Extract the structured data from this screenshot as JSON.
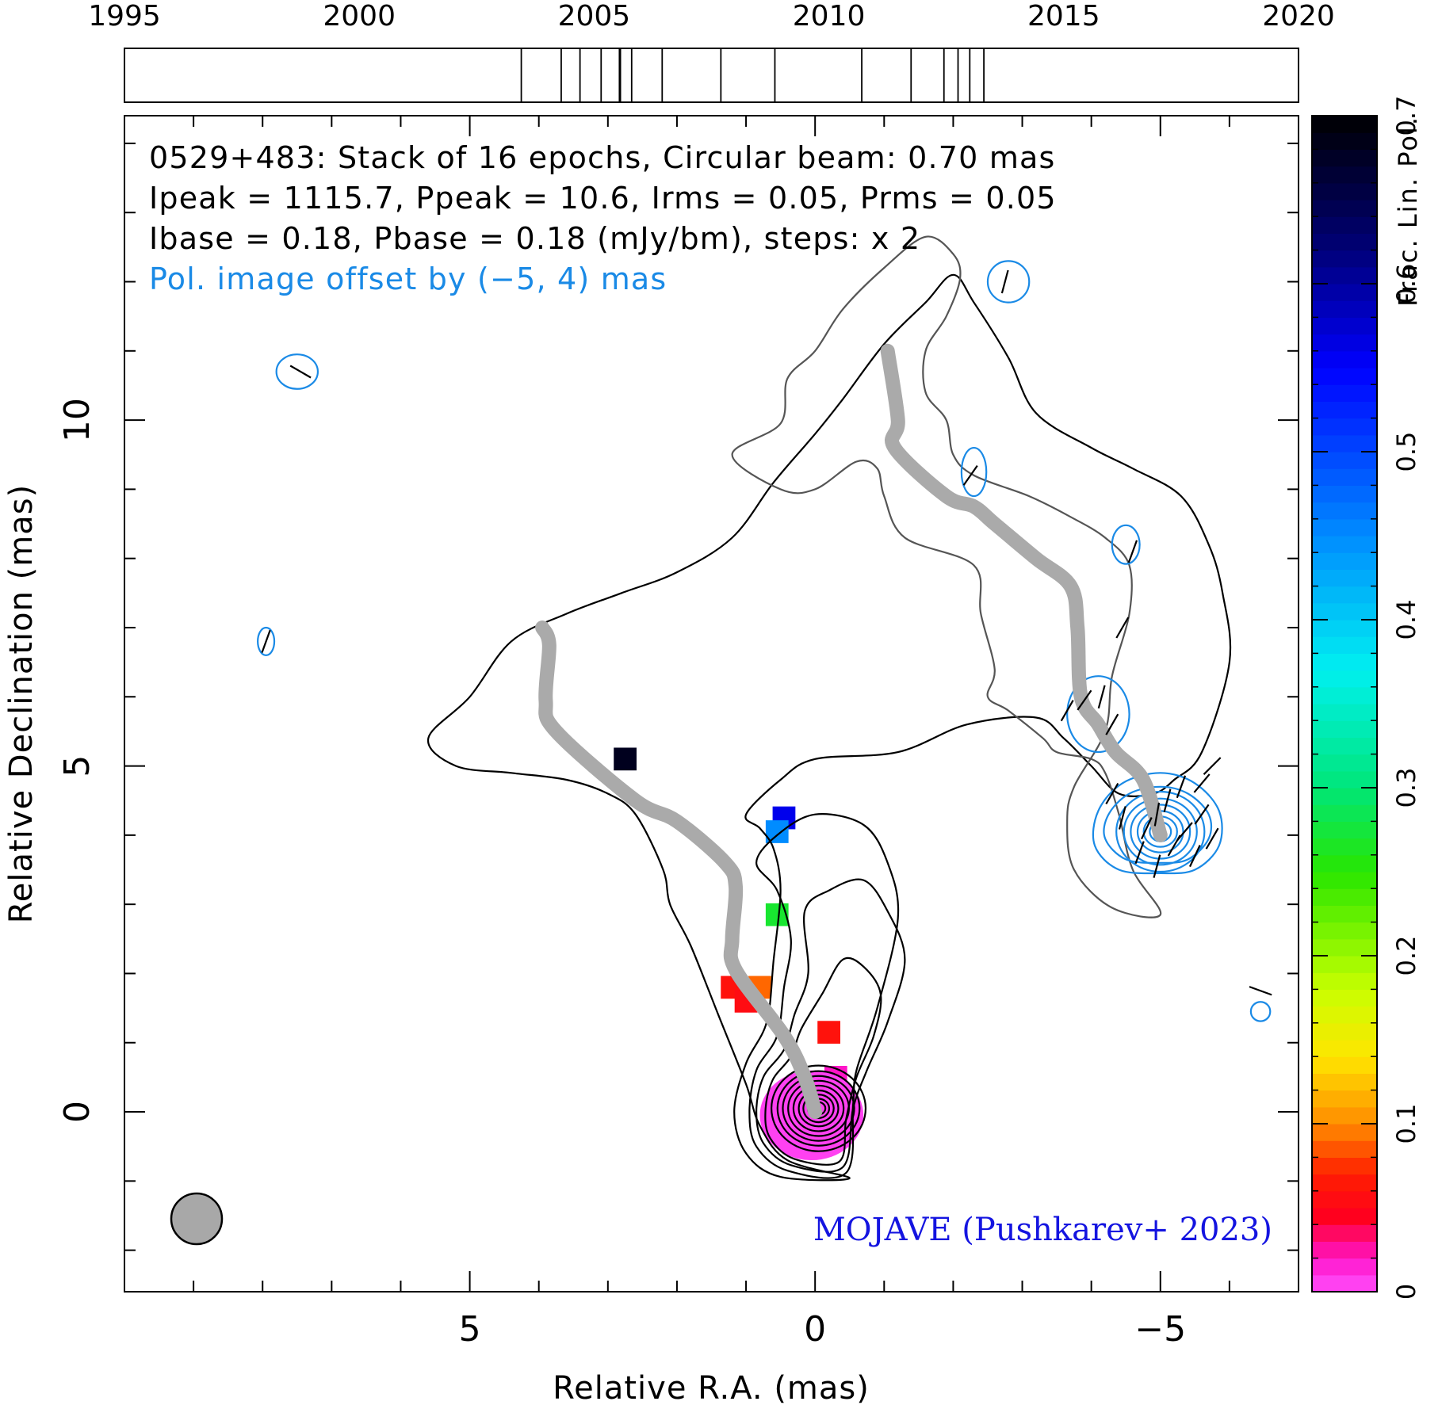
{
  "chart_data": {
    "type": "contour",
    "title_lines": [
      "0529+483: Stack of 16 epochs, Circular beam: 0.70 mas",
      "Ipeak = 1115.7, Ppeak = 10.6, Irms = 0.05, Prms = 0.05",
      "Ibase = 0.18, Pbase = 0.18 (mJy/bm), steps: x 2"
    ],
    "offset_note": "Pol. image offset by (−5, 4) mas",
    "credit": "MOJAVE (Pushkarev+ 2023)",
    "xlabel": "Relative R.A. (mas)",
    "ylabel": "Relative Declination (mas)",
    "colorbar_label": "Frac. Lin. Pol.",
    "xlim": [
      10,
      -7
    ],
    "ylim": [
      -2.6,
      14.4
    ],
    "x_ticks": [
      5,
      0,
      -5
    ],
    "x_tick_labels": [
      "5",
      "0",
      "−5"
    ],
    "y_ticks": [
      0,
      5,
      10
    ],
    "y_tick_labels": [
      "0",
      "5",
      "10"
    ],
    "colorbar_range": [
      0,
      0.7
    ],
    "colorbar_ticks": [
      0,
      0.1,
      0.2,
      0.3,
      0.4,
      0.5,
      0.6,
      0.7
    ],
    "colorbar_tick_labels": [
      "0",
      "0.1",
      "0.2",
      "0.3",
      "0.4",
      "0.5",
      "0.6",
      "0.7"
    ],
    "timeline": {
      "range": [
        1995,
        2020
      ],
      "tick_labels": [
        "1995",
        "2000",
        "2005",
        "2010",
        "2015",
        "2020"
      ],
      "epochs": [
        2003.45,
        2004.3,
        2004.7,
        2005.15,
        2005.55,
        2005.55,
        2005.8,
        2006.45,
        2007.7,
        2008.85,
        2010.7,
        2011.75,
        2012.45,
        2012.75,
        2013.0,
        2013.3
      ]
    },
    "beam_diameter_mas": 0.7,
    "total_intensity_contours": [
      [
        [
          -0.5,
          -0.96
        ],
        [
          0.5,
          -0.94
        ],
        [
          1.0,
          -0.6
        ],
        [
          1.17,
          0.0
        ],
        [
          1.0,
          0.7
        ],
        [
          0.7,
          1.3
        ],
        [
          0.6,
          2.2
        ],
        [
          0.5,
          3.2
        ],
        [
          0.6,
          3.8
        ],
        [
          0.8,
          4.1
        ],
        [
          1.0,
          4.3
        ],
        [
          0.5,
          4.8
        ],
        [
          0.0,
          5.1
        ],
        [
          -1.2,
          5.2
        ],
        [
          -2.2,
          5.6
        ],
        [
          -3.2,
          5.7
        ],
        [
          -3.6,
          5.4
        ],
        [
          -4.0,
          5.0
        ],
        [
          -4.4,
          4.6
        ],
        [
          -4.9,
          4.6
        ],
        [
          -5.2,
          4.8
        ],
        [
          -5.6,
          5.2
        ],
        [
          -6.0,
          6.5
        ],
        [
          -5.9,
          7.5
        ],
        [
          -5.7,
          8.2
        ],
        [
          -5.3,
          8.9
        ],
        [
          -4.6,
          9.3
        ],
        [
          -4.0,
          9.6
        ],
        [
          -3.2,
          10.1
        ],
        [
          -2.8,
          10.9
        ],
        [
          -2.3,
          11.7
        ],
        [
          -2.0,
          12.1
        ],
        [
          -1.6,
          11.7
        ],
        [
          -1.0,
          11.1
        ],
        [
          -0.4,
          10.3
        ],
        [
          0.0,
          9.8
        ],
        [
          0.6,
          9.1
        ],
        [
          1.2,
          8.3
        ],
        [
          2.0,
          7.8
        ],
        [
          2.8,
          7.5
        ],
        [
          3.6,
          7.2
        ],
        [
          4.4,
          6.8
        ],
        [
          5.0,
          6.0
        ],
        [
          5.6,
          5.4
        ],
        [
          5.2,
          5.0
        ],
        [
          4.4,
          4.9
        ],
        [
          3.6,
          4.8
        ],
        [
          3.0,
          4.6
        ],
        [
          2.6,
          4.3
        ],
        [
          2.2,
          3.5
        ],
        [
          2.1,
          3.0
        ],
        [
          1.8,
          2.4
        ],
        [
          1.4,
          1.4
        ],
        [
          1.0,
          0.4
        ],
        [
          0.8,
          -0.2
        ],
        [
          0.4,
          -0.7
        ],
        [
          -0.5,
          -0.96
        ]
      ],
      [
        [
          -0.45,
          -0.88
        ],
        [
          0.4,
          -0.85
        ],
        [
          0.85,
          -0.5
        ],
        [
          0.95,
          0.0
        ],
        [
          0.85,
          0.6
        ],
        [
          0.55,
          1.1
        ],
        [
          0.45,
          1.8
        ],
        [
          0.35,
          2.5
        ],
        [
          0.55,
          3.2
        ],
        [
          0.85,
          3.6
        ],
        [
          0.55,
          4.0
        ],
        [
          0.0,
          4.3
        ],
        [
          -0.7,
          4.15
        ],
        [
          -1.05,
          3.6
        ],
        [
          -1.2,
          2.8
        ],
        [
          -0.9,
          1.5
        ],
        [
          -0.6,
          0.6
        ],
        [
          -0.55,
          0.1
        ],
        [
          -0.45,
          -0.88
        ]
      ],
      [
        [
          -0.4,
          -0.8
        ],
        [
          0.35,
          -0.77
        ],
        [
          0.75,
          -0.45
        ],
        [
          0.85,
          0.0
        ],
        [
          0.75,
          0.5
        ],
        [
          0.45,
          0.9
        ],
        [
          0.3,
          1.4
        ],
        [
          0.1,
          2.0
        ],
        [
          0.15,
          2.9
        ],
        [
          -0.2,
          3.2
        ],
        [
          -0.7,
          3.35
        ],
        [
          -1.05,
          2.9
        ],
        [
          -1.3,
          2.2
        ],
        [
          -1.05,
          1.3
        ],
        [
          -0.75,
          0.6
        ],
        [
          -0.55,
          0.05
        ],
        [
          -0.4,
          -0.8
        ]
      ],
      [
        [
          -0.35,
          -0.72
        ],
        [
          0.3,
          -0.68
        ],
        [
          0.65,
          -0.38
        ],
        [
          0.72,
          0.0
        ],
        [
          0.62,
          0.45
        ],
        [
          0.35,
          0.8
        ],
        [
          0.2,
          1.2
        ],
        [
          -0.1,
          1.7
        ],
        [
          -0.4,
          2.2
        ],
        [
          -0.7,
          2.1
        ],
        [
          -0.95,
          1.7
        ],
        [
          -0.85,
          1.1
        ],
        [
          -0.6,
          0.5
        ],
        [
          -0.45,
          -0.1
        ],
        [
          -0.35,
          -0.72
        ]
      ]
    ],
    "polarization_offset_contours": [
      [
        [
          -5.0,
          3.45
        ],
        [
          -4.4,
          3.5
        ],
        [
          -4.05,
          3.85
        ],
        [
          -4.1,
          4.35
        ],
        [
          -4.45,
          4.75
        ],
        [
          -5.0,
          4.9
        ],
        [
          -5.5,
          4.75
        ],
        [
          -5.85,
          4.35
        ],
        [
          -5.85,
          3.85
        ],
        [
          -5.5,
          3.5
        ],
        [
          -5.0,
          3.45
        ]
      ],
      [
        [
          -5.0,
          3.6
        ],
        [
          -4.5,
          3.65
        ],
        [
          -4.2,
          3.95
        ],
        [
          -4.25,
          4.3
        ],
        [
          -4.55,
          4.6
        ],
        [
          -5.0,
          4.7
        ],
        [
          -5.4,
          4.6
        ],
        [
          -5.7,
          4.3
        ],
        [
          -5.7,
          3.95
        ],
        [
          -5.4,
          3.65
        ],
        [
          -5.0,
          3.6
        ]
      ]
    ],
    "fractional_polarization_pixels": [
      {
        "x": 0.1,
        "y": 0.0,
        "value": 0.005
      },
      {
        "x": -0.2,
        "y": 0.0,
        "value": 0.01
      },
      {
        "x": 0.25,
        "y": -0.25,
        "value": 0.008
      },
      {
        "x": -0.3,
        "y": 0.5,
        "value": 0.02
      },
      {
        "x": 1.2,
        "y": 1.8,
        "value": 0.06
      },
      {
        "x": 1.0,
        "y": 1.6,
        "value": 0.055
      },
      {
        "x": 0.8,
        "y": 1.8,
        "value": 0.09
      },
      {
        "x": -0.2,
        "y": 1.15,
        "value": 0.06
      },
      {
        "x": 0.55,
        "y": 2.85,
        "value": 0.27
      },
      {
        "x": 0.45,
        "y": 4.25,
        "value": 0.56
      },
      {
        "x": 0.55,
        "y": 4.05,
        "value": 0.45
      },
      {
        "x": 2.75,
        "y": 5.1,
        "value": 0.68
      }
    ],
    "ridge_line_offset": [
      [
        -5.0,
        4.0
      ],
      [
        -4.75,
        4.8
      ],
      [
        -4.35,
        5.2
      ],
      [
        -4.1,
        5.6
      ],
      [
        -3.85,
        6.0
      ],
      [
        -3.8,
        7.0
      ],
      [
        -3.7,
        7.6
      ],
      [
        -3.2,
        8.0
      ],
      [
        -2.6,
        8.5
      ],
      [
        -2.3,
        8.75
      ],
      [
        -1.9,
        8.9
      ],
      [
        -1.15,
        9.6
      ],
      [
        -1.2,
        10.0
      ],
      [
        -1.05,
        11.0
      ]
    ],
    "ridge_line": [
      [
        0.0,
        0.0
      ],
      [
        0.15,
        0.5
      ],
      [
        0.45,
        1.1
      ],
      [
        1.15,
        2.05
      ],
      [
        1.2,
        2.5
      ],
      [
        1.15,
        3.25
      ],
      [
        1.3,
        3.6
      ],
      [
        2.0,
        4.2
      ],
      [
        2.6,
        4.5
      ],
      [
        3.75,
        5.5
      ],
      [
        3.9,
        5.95
      ],
      [
        3.85,
        6.75
      ],
      [
        3.95,
        7.0
      ]
    ],
    "evpa_ticks_offset": [
      {
        "x": -5.3,
        "y": 4.7,
        "angle": 20
      },
      {
        "x": -5.1,
        "y": 4.5,
        "angle": 15
      },
      {
        "x": -4.95,
        "y": 4.3,
        "angle": 10
      },
      {
        "x": -4.8,
        "y": 4.1,
        "angle": 25
      },
      {
        "x": -5.35,
        "y": 4.05,
        "angle": 40
      },
      {
        "x": -5.6,
        "y": 4.3,
        "angle": 35
      },
      {
        "x": -5.2,
        "y": 3.85,
        "angle": 30
      },
      {
        "x": -4.7,
        "y": 3.75,
        "angle": 20
      },
      {
        "x": -5.5,
        "y": 3.7,
        "angle": 25
      },
      {
        "x": -5.75,
        "y": 3.95,
        "angle": 30
      },
      {
        "x": -4.95,
        "y": 3.55,
        "angle": 15
      },
      {
        "x": -4.45,
        "y": 4.25,
        "angle": 15
      },
      {
        "x": -4.3,
        "y": 4.6,
        "angle": 30
      },
      {
        "x": -5.6,
        "y": 4.75,
        "angle": 40
      },
      {
        "x": -5.75,
        "y": 5.0,
        "angle": 45
      },
      {
        "x": -3.65,
        "y": 5.8,
        "angle": 30
      },
      {
        "x": -3.9,
        "y": 5.95,
        "angle": 35
      },
      {
        "x": -4.15,
        "y": 6.0,
        "angle": 15
      },
      {
        "x": -4.3,
        "y": 5.6,
        "angle": 30
      },
      {
        "x": -4.45,
        "y": 7.0,
        "angle": 30
      },
      {
        "x": -4.6,
        "y": 8.1,
        "angle": 20
      },
      {
        "x": -2.25,
        "y": 9.2,
        "angle": 35
      },
      {
        "x": -2.75,
        "y": 12.0,
        "angle": 15
      },
      {
        "x": 7.45,
        "y": 10.7,
        "angle": -60
      },
      {
        "x": 7.95,
        "y": 6.8,
        "angle": 20
      },
      {
        "x": -6.45,
        "y": 1.75,
        "angle": -70
      }
    ],
    "beam": "circular"
  }
}
